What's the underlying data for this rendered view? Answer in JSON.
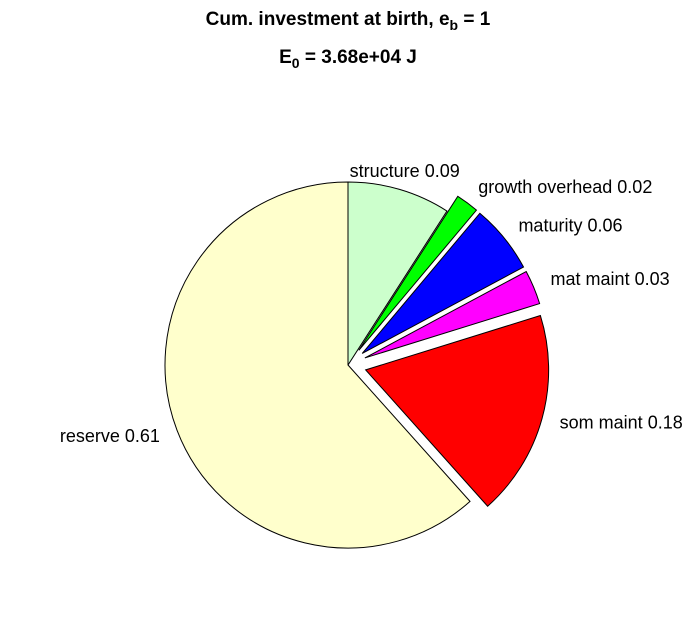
{
  "chart_data": {
    "type": "pie",
    "title": {
      "text": "Cum. investment at birth, e",
      "sub": "b",
      "tail": " = 1"
    },
    "subtitle": {
      "text": "E",
      "sub": "0",
      "tail": " = 3.68e+04 J"
    },
    "categories": [
      "structure",
      "growth overhead",
      "maturity",
      "mat maint",
      "som maint",
      "reserve"
    ],
    "values": [
      0.09,
      0.02,
      0.06,
      0.03,
      0.18,
      0.61
    ],
    "colors": [
      "#ccffcc",
      "#00ff00",
      "#0000ff",
      "#ff00ff",
      "#ff0000",
      "#ffffcc"
    ],
    "explode": [
      false,
      true,
      true,
      true,
      true,
      false
    ]
  }
}
